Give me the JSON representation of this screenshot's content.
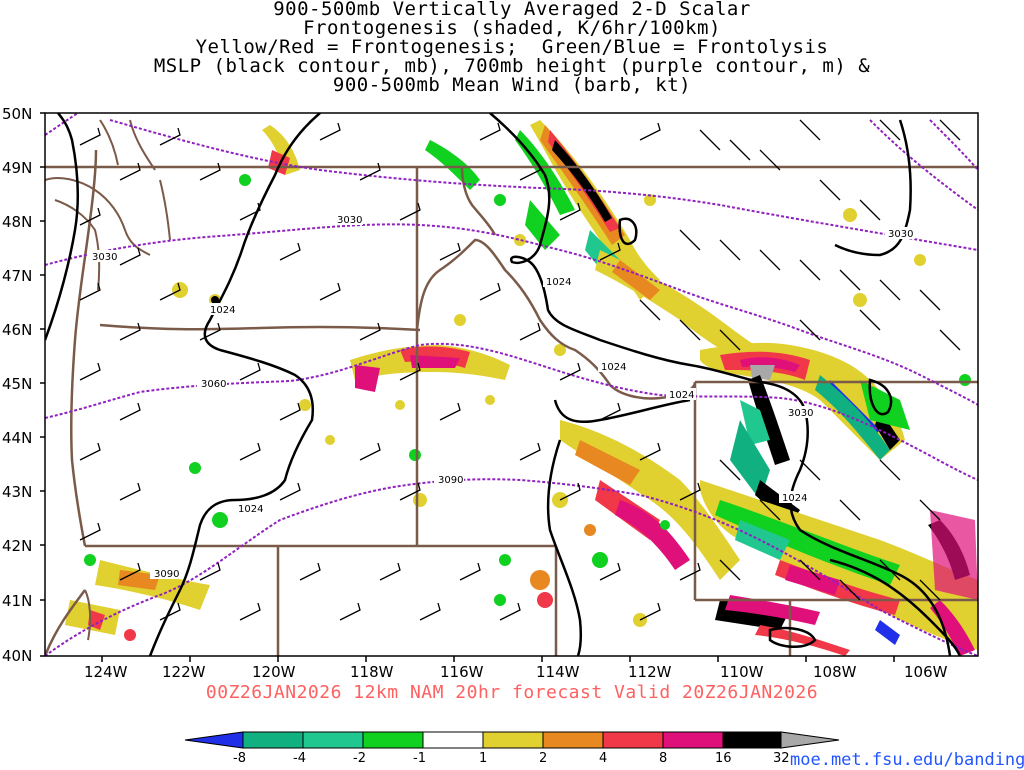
{
  "title": {
    "lines": [
      "900-500mb Vertically Averaged 2-D Scalar",
      "Frontogenesis (shaded, K/6hr/100km)",
      "Yellow/Red = Frontogenesis;  Green/Blue = Frontolysis",
      "MSLP (black contour, mb), 700mb height (purple contour, m) &",
      "900-500mb Mean Wind (barb, kt)"
    ]
  },
  "lat_labels": [
    "50N",
    "49N",
    "48N",
    "47N",
    "46N",
    "45N",
    "44N",
    "43N",
    "42N",
    "41N",
    "40N"
  ],
  "lon_labels": [
    "124W",
    "122W",
    "120W",
    "118W",
    "116W",
    "114W",
    "112W",
    "110W",
    "108W",
    "106W"
  ],
  "contour_labels": {
    "height": [
      "3030",
      "3030",
      "3060",
      "3090",
      "3090",
      "3030"
    ],
    "mslp": [
      "1024",
      "1024",
      "1024",
      "1024",
      "1024",
      "1024"
    ],
    "height_right": "3030"
  },
  "footer": "00Z26JAN2026 12km NAM 20hr forecast Valid 20Z26JAN2026",
  "credit": "moe.met.fsu.edu/banding",
  "colorbar": {
    "labels": [
      "-8",
      "-4",
      "-2",
      "-1",
      "1",
      "2",
      "4",
      "8",
      "16",
      "32"
    ],
    "colors": [
      "#2030e8",
      "#10b080",
      "#20c890",
      "#10d020",
      "#ffffff",
      "#e0d030",
      "#e88820",
      "#f03848",
      "#e0107a",
      "#000000",
      "#a8a8a8"
    ]
  },
  "colors": {
    "state_border": "#7a5a48",
    "mslp": "#000000",
    "height": "#9020c0",
    "footer": "#ff6060",
    "credit": "#2255ff"
  }
}
